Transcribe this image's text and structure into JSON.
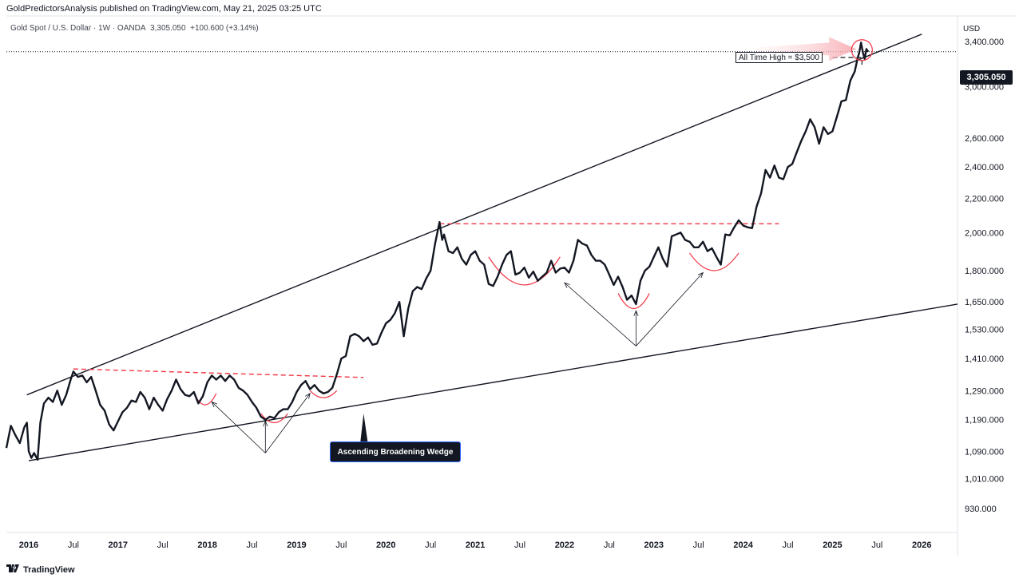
{
  "header": {
    "publisher": "GoldPredictorsAnalysis published on TradingView.com, May 21, 2025 03:25 UTC",
    "symbol": "Gold Spot / U.S. Dollar · 1W · OANDA",
    "last": "3,305.050",
    "change": "+100.600 (+3.14%)"
  },
  "currency": "USD",
  "price_badge": "3,305.050",
  "footer": {
    "brand": "TradingView"
  },
  "annotations": {
    "wedge_label": "Ascending Broadening Wedge",
    "ath_label": "All Time High = $3,500"
  },
  "colors": {
    "price_line": "#131722",
    "trendline": "#131722",
    "resistance_dash": "#f23645",
    "cup": "#f23645",
    "arrow_fill": "#f7a9b0",
    "badge": "#131722"
  },
  "chart_data": {
    "type": "line",
    "title": "Gold Spot / U.S. Dollar · 1W · OANDA",
    "y_scale": "log",
    "ylim": [
      870,
      3650
    ],
    "xlim": [
      2015.75,
      2026.4
    ],
    "x_ticks": [
      {
        "x": 2016.0,
        "label": "2016"
      },
      {
        "x": 2016.5,
        "label": "Jul"
      },
      {
        "x": 2017.0,
        "label": "2017"
      },
      {
        "x": 2017.5,
        "label": "Jul"
      },
      {
        "x": 2018.0,
        "label": "2018"
      },
      {
        "x": 2018.5,
        "label": "Jul"
      },
      {
        "x": 2019.0,
        "label": "2019"
      },
      {
        "x": 2019.5,
        "label": "Jul"
      },
      {
        "x": 2020.0,
        "label": "2020"
      },
      {
        "x": 2020.5,
        "label": "Jul"
      },
      {
        "x": 2021.0,
        "label": "2021"
      },
      {
        "x": 2021.5,
        "label": "Jul"
      },
      {
        "x": 2022.0,
        "label": "2022"
      },
      {
        "x": 2022.5,
        "label": "Jul"
      },
      {
        "x": 2023.0,
        "label": "2023"
      },
      {
        "x": 2023.5,
        "label": "Jul"
      },
      {
        "x": 2024.0,
        "label": "2024"
      },
      {
        "x": 2024.5,
        "label": "Jul"
      },
      {
        "x": 2025.0,
        "label": "2025"
      },
      {
        "x": 2025.5,
        "label": "Jul"
      },
      {
        "x": 2026.0,
        "label": "2026"
      }
    ],
    "y_ticks": [
      {
        "v": 930,
        "label": "930.000"
      },
      {
        "v": 1010,
        "label": "1,010.000"
      },
      {
        "v": 1090,
        "label": "1,090.000"
      },
      {
        "v": 1190,
        "label": "1,190.000"
      },
      {
        "v": 1290,
        "label": "1,290.000"
      },
      {
        "v": 1410,
        "label": "1,410.000"
      },
      {
        "v": 1530,
        "label": "1,530.000"
      },
      {
        "v": 1650,
        "label": "1,650.000"
      },
      {
        "v": 1800,
        "label": "1,800.000"
      },
      {
        "v": 2000,
        "label": "2,000.000"
      },
      {
        "v": 2200,
        "label": "2,200.000"
      },
      {
        "v": 2400,
        "label": "2,400.000"
      },
      {
        "v": 2600,
        "label": "2,600.000"
      },
      {
        "v": 3000,
        "label": "3,000.000"
      },
      {
        "v": 3400,
        "label": "3,400.000"
      }
    ],
    "series": [
      {
        "name": "Gold Spot / U.S. Dollar",
        "points": [
          [
            2015.75,
            1100
          ],
          [
            2015.8,
            1170
          ],
          [
            2015.85,
            1140
          ],
          [
            2015.9,
            1115
          ],
          [
            2015.95,
            1165
          ],
          [
            2015.98,
            1180
          ],
          [
            2016.0,
            1090
          ],
          [
            2016.03,
            1070
          ],
          [
            2016.06,
            1085
          ],
          [
            2016.1,
            1065
          ],
          [
            2016.13,
            1180
          ],
          [
            2016.17,
            1245
          ],
          [
            2016.22,
            1265
          ],
          [
            2016.27,
            1250
          ],
          [
            2016.32,
            1290
          ],
          [
            2016.37,
            1240
          ],
          [
            2016.42,
            1275
          ],
          [
            2016.47,
            1330
          ],
          [
            2016.5,
            1360
          ],
          [
            2016.55,
            1340
          ],
          [
            2016.6,
            1345
          ],
          [
            2016.65,
            1320
          ],
          [
            2016.7,
            1340
          ],
          [
            2016.75,
            1290
          ],
          [
            2016.8,
            1240
          ],
          [
            2016.85,
            1220
          ],
          [
            2016.9,
            1175
          ],
          [
            2016.95,
            1155
          ],
          [
            2017.0,
            1185
          ],
          [
            2017.05,
            1215
          ],
          [
            2017.1,
            1230
          ],
          [
            2017.15,
            1255
          ],
          [
            2017.2,
            1250
          ],
          [
            2017.25,
            1285
          ],
          [
            2017.3,
            1265
          ],
          [
            2017.35,
            1225
          ],
          [
            2017.4,
            1265
          ],
          [
            2017.45,
            1240
          ],
          [
            2017.5,
            1220
          ],
          [
            2017.55,
            1260
          ],
          [
            2017.6,
            1290
          ],
          [
            2017.65,
            1330
          ],
          [
            2017.7,
            1295
          ],
          [
            2017.75,
            1275
          ],
          [
            2017.8,
            1270
          ],
          [
            2017.85,
            1285
          ],
          [
            2017.9,
            1245
          ],
          [
            2017.95,
            1270
          ],
          [
            2018.0,
            1320
          ],
          [
            2018.05,
            1345
          ],
          [
            2018.1,
            1330
          ],
          [
            2018.15,
            1345
          ],
          [
            2018.2,
            1325
          ],
          [
            2018.25,
            1345
          ],
          [
            2018.3,
            1330
          ],
          [
            2018.35,
            1300
          ],
          [
            2018.4,
            1290
          ],
          [
            2018.45,
            1275
          ],
          [
            2018.5,
            1250
          ],
          [
            2018.55,
            1230
          ],
          [
            2018.6,
            1200
          ],
          [
            2018.65,
            1190
          ],
          [
            2018.7,
            1200
          ],
          [
            2018.75,
            1195
          ],
          [
            2018.8,
            1215
          ],
          [
            2018.85,
            1225
          ],
          [
            2018.9,
            1225
          ],
          [
            2018.95,
            1250
          ],
          [
            2019.0,
            1285
          ],
          [
            2019.05,
            1310
          ],
          [
            2019.1,
            1325
          ],
          [
            2019.15,
            1295
          ],
          [
            2019.2,
            1310
          ],
          [
            2019.25,
            1290
          ],
          [
            2019.3,
            1280
          ],
          [
            2019.35,
            1285
          ],
          [
            2019.4,
            1300
          ],
          [
            2019.45,
            1350
          ],
          [
            2019.5,
            1410
          ],
          [
            2019.55,
            1420
          ],
          [
            2019.6,
            1500
          ],
          [
            2019.65,
            1510
          ],
          [
            2019.7,
            1500
          ],
          [
            2019.75,
            1480
          ],
          [
            2019.8,
            1495
          ],
          [
            2019.85,
            1465
          ],
          [
            2019.9,
            1470
          ],
          [
            2019.95,
            1515
          ],
          [
            2020.0,
            1555
          ],
          [
            2020.05,
            1570
          ],
          [
            2020.1,
            1600
          ],
          [
            2020.15,
            1650
          ],
          [
            2020.2,
            1500
          ],
          [
            2020.25,
            1620
          ],
          [
            2020.3,
            1700
          ],
          [
            2020.35,
            1720
          ],
          [
            2020.4,
            1710
          ],
          [
            2020.45,
            1760
          ],
          [
            2020.5,
            1800
          ],
          [
            2020.55,
            1940
          ],
          [
            2020.6,
            2060
          ],
          [
            2020.63,
            1960
          ],
          [
            2020.65,
            1990
          ],
          [
            2020.7,
            1900
          ],
          [
            2020.75,
            1890
          ],
          [
            2020.8,
            1920
          ],
          [
            2020.85,
            1860
          ],
          [
            2020.9,
            1830
          ],
          [
            2020.95,
            1880
          ],
          [
            2021.0,
            1900
          ],
          [
            2021.05,
            1850
          ],
          [
            2021.1,
            1830
          ],
          [
            2021.15,
            1735
          ],
          [
            2021.2,
            1725
          ],
          [
            2021.25,
            1770
          ],
          [
            2021.3,
            1830
          ],
          [
            2021.35,
            1880
          ],
          [
            2021.4,
            1900
          ],
          [
            2021.45,
            1780
          ],
          [
            2021.5,
            1790
          ],
          [
            2021.55,
            1815
          ],
          [
            2021.6,
            1765
          ],
          [
            2021.65,
            1795
          ],
          [
            2021.7,
            1750
          ],
          [
            2021.75,
            1770
          ],
          [
            2021.8,
            1790
          ],
          [
            2021.85,
            1850
          ],
          [
            2021.9,
            1790
          ],
          [
            2021.95,
            1810
          ],
          [
            2022.0,
            1815
          ],
          [
            2022.05,
            1790
          ],
          [
            2022.1,
            1850
          ],
          [
            2022.15,
            1960
          ],
          [
            2022.2,
            1940
          ],
          [
            2022.25,
            1930
          ],
          [
            2022.3,
            1880
          ],
          [
            2022.35,
            1850
          ],
          [
            2022.4,
            1850
          ],
          [
            2022.45,
            1830
          ],
          [
            2022.5,
            1780
          ],
          [
            2022.55,
            1730
          ],
          [
            2022.6,
            1770
          ],
          [
            2022.65,
            1720
          ],
          [
            2022.7,
            1660
          ],
          [
            2022.75,
            1680
          ],
          [
            2022.8,
            1640
          ],
          [
            2022.85,
            1750
          ],
          [
            2022.9,
            1800
          ],
          [
            2022.95,
            1820
          ],
          [
            2023.0,
            1870
          ],
          [
            2023.05,
            1920
          ],
          [
            2023.1,
            1860
          ],
          [
            2023.15,
            1820
          ],
          [
            2023.2,
            1980
          ],
          [
            2023.25,
            1990
          ],
          [
            2023.3,
            2000
          ],
          [
            2023.35,
            1960
          ],
          [
            2023.4,
            1950
          ],
          [
            2023.45,
            1920
          ],
          [
            2023.5,
            1920
          ],
          [
            2023.55,
            1950
          ],
          [
            2023.6,
            1900
          ],
          [
            2023.65,
            1915
          ],
          [
            2023.7,
            1870
          ],
          [
            2023.75,
            1830
          ],
          [
            2023.8,
            1990
          ],
          [
            2023.85,
            1985
          ],
          [
            2023.9,
            2030
          ],
          [
            2023.95,
            2070
          ],
          [
            2024.0,
            2040
          ],
          [
            2024.05,
            2030
          ],
          [
            2024.1,
            2025
          ],
          [
            2024.15,
            2150
          ],
          [
            2024.2,
            2230
          ],
          [
            2024.25,
            2380
          ],
          [
            2024.3,
            2330
          ],
          [
            2024.35,
            2410
          ],
          [
            2024.4,
            2330
          ],
          [
            2024.45,
            2320
          ],
          [
            2024.5,
            2400
          ],
          [
            2024.55,
            2420
          ],
          [
            2024.6,
            2500
          ],
          [
            2024.65,
            2580
          ],
          [
            2024.7,
            2650
          ],
          [
            2024.75,
            2740
          ],
          [
            2024.8,
            2680
          ],
          [
            2024.85,
            2560
          ],
          [
            2024.9,
            2680
          ],
          [
            2024.95,
            2630
          ],
          [
            2025.0,
            2650
          ],
          [
            2025.05,
            2760
          ],
          [
            2025.1,
            2880
          ],
          [
            2025.15,
            2890
          ],
          [
            2025.2,
            3050
          ],
          [
            2025.25,
            3130
          ],
          [
            2025.28,
            3240
          ],
          [
            2025.3,
            3300
          ],
          [
            2025.32,
            3390
          ],
          [
            2025.34,
            3300
          ],
          [
            2025.36,
            3240
          ],
          [
            2025.38,
            3330
          ],
          [
            2025.4,
            3305
          ]
        ]
      }
    ]
  }
}
